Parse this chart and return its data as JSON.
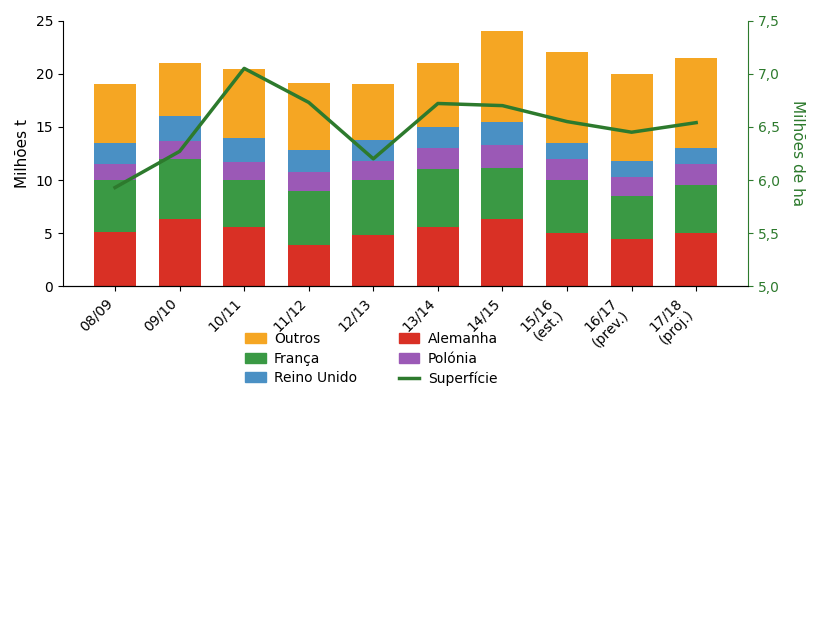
{
  "categories": [
    "08/09",
    "09/10",
    "10/11",
    "11/12",
    "12/13",
    "13/14",
    "14/15",
    "15/16\n(est.)",
    "16/17\n(prev.)",
    "17/18\n(proj.)"
  ],
  "alemanha": [
    5.1,
    6.3,
    5.6,
    3.9,
    4.8,
    5.6,
    6.3,
    5.0,
    4.5,
    5.0
  ],
  "franca": [
    4.9,
    5.7,
    4.4,
    5.1,
    5.2,
    5.4,
    4.8,
    5.0,
    4.0,
    4.5
  ],
  "polonia": [
    1.5,
    1.7,
    1.7,
    1.8,
    1.8,
    2.0,
    2.2,
    2.0,
    1.8,
    2.0
  ],
  "reino_unido": [
    2.0,
    2.3,
    2.3,
    2.0,
    2.0,
    2.0,
    2.2,
    1.5,
    1.5,
    1.5
  ],
  "outros": [
    5.5,
    5.0,
    6.4,
    6.3,
    5.2,
    6.0,
    8.5,
    8.5,
    8.2,
    8.5
  ],
  "superficie": [
    5.93,
    6.27,
    7.05,
    6.73,
    6.2,
    6.72,
    6.7,
    6.55,
    6.45,
    6.54
  ],
  "colors": {
    "alemanha": "#d93025",
    "franca": "#3a9944",
    "polonia": "#9b59b6",
    "reino_unido": "#4a90c4",
    "outros": "#f5a623",
    "superficie": "#2d7a2d"
  },
  "ylabel_left": "Milhões t",
  "ylabel_right": "Milhões de ha",
  "ylim_left": [
    0,
    25
  ],
  "ylim_right": [
    5.0,
    7.5
  ],
  "yticks_left": [
    0,
    5,
    10,
    15,
    20,
    25
  ],
  "yticks_right": [
    5.0,
    5.5,
    6.0,
    6.5,
    7.0,
    7.5
  ],
  "bar_width": 0.65,
  "line_width": 2.5,
  "figsize": [
    8.2,
    6.18
  ],
  "dpi": 100
}
